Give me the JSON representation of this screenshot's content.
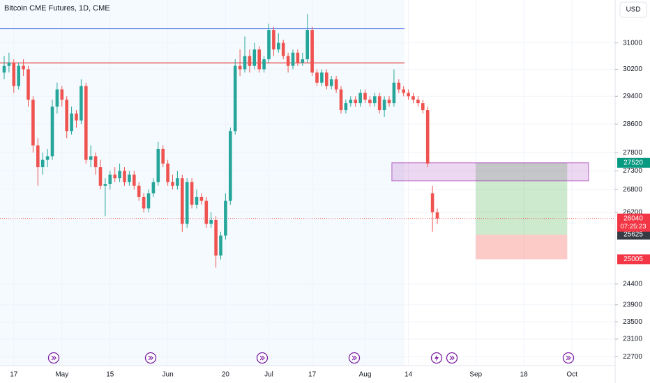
{
  "chart_data": {
    "type": "candlestick",
    "title": "Bitcoin CME Futures, 1D, CME",
    "currency": "USD",
    "log_scale": true,
    "grid": true,
    "up_color": "#26a69a",
    "down_color": "#ef5350",
    "categories": [
      null,
      null,
      "17",
      null,
      null,
      null,
      null,
      null,
      null,
      null,
      null,
      null,
      "May",
      null,
      null,
      null,
      null,
      null,
      null,
      null,
      null,
      null,
      "15",
      null,
      null,
      null,
      null,
      null,
      null,
      null,
      null,
      null,
      null,
      null,
      "Jun",
      null,
      null,
      null,
      null,
      null,
      null,
      null,
      null,
      null,
      null,
      null,
      "20",
      null,
      null,
      null,
      null,
      null,
      null,
      null,
      null,
      "Jul",
      null,
      null,
      null,
      null,
      null,
      null,
      null,
      null,
      "17",
      null,
      null,
      null,
      null,
      null,
      null,
      null,
      null,
      null,
      null,
      "Aug",
      null,
      null,
      null,
      null,
      null,
      null,
      null,
      null,
      "14",
      null,
      null,
      null,
      null,
      null,
      null,
      null,
      null,
      null,
      null,
      null,
      null,
      null,
      "Sep",
      null,
      null,
      null,
      null,
      null,
      null,
      null,
      null,
      null,
      "18",
      null,
      null,
      null,
      null,
      null,
      null,
      null,
      null,
      null,
      "Oct"
    ],
    "ohlc": [
      [
        30100,
        30600,
        29900,
        30300
      ],
      [
        30300,
        30700,
        30100,
        30400
      ],
      [
        30400,
        30500,
        29500,
        29700
      ],
      [
        29700,
        30400,
        29600,
        30300
      ],
      [
        30300,
        30500,
        30000,
        30200
      ],
      [
        30200,
        30300,
        29100,
        29300
      ],
      [
        29300,
        29400,
        27800,
        28000
      ],
      [
        28000,
        28200,
        26900,
        27400
      ],
      [
        27400,
        27800,
        27200,
        27600
      ],
      [
        27600,
        27900,
        27400,
        27700
      ],
      [
        27700,
        29300,
        27600,
        29100
      ],
      [
        29100,
        29800,
        28900,
        29600
      ],
      [
        29600,
        29700,
        29100,
        29300
      ],
      [
        29300,
        29400,
        28200,
        28400
      ],
      [
        28400,
        29100,
        28300,
        28900
      ],
      [
        28900,
        29000,
        28500,
        28700
      ],
      [
        28700,
        29900,
        28600,
        29700
      ],
      [
        29700,
        29800,
        27500,
        27600
      ],
      [
        27600,
        28000,
        27400,
        27700
      ],
      [
        27700,
        27800,
        27200,
        27400
      ],
      [
        27400,
        27600,
        26800,
        26900
      ],
      [
        26900,
        27100,
        26100,
        26950
      ],
      [
        26950,
        27300,
        26800,
        27200
      ],
      [
        27200,
        27400,
        27000,
        27100
      ],
      [
        27100,
        27500,
        27000,
        27300
      ],
      [
        27300,
        27400,
        26900,
        27000
      ],
      [
        27000,
        27300,
        26900,
        27200
      ],
      [
        27200,
        27300,
        26800,
        26900
      ],
      [
        26900,
        27000,
        26500,
        26600
      ],
      [
        26600,
        26700,
        26200,
        26300
      ],
      [
        26300,
        26800,
        26200,
        26700
      ],
      [
        26700,
        27100,
        26600,
        27000
      ],
      [
        27000,
        28100,
        26900,
        27900
      ],
      [
        27900,
        28000,
        27400,
        27500
      ],
      [
        27500,
        27600,
        26900,
        27000
      ],
      [
        27000,
        27200,
        26800,
        26900
      ],
      [
        26900,
        27300,
        26800,
        27100
      ],
      [
        27100,
        27200,
        25700,
        25900
      ],
      [
        25900,
        27100,
        25800,
        27000
      ],
      [
        27000,
        27100,
        26300,
        26400
      ],
      [
        26400,
        26800,
        26300,
        26600
      ],
      [
        26600,
        26700,
        26400,
        26500
      ],
      [
        26500,
        26600,
        25800,
        25900
      ],
      [
        25900,
        26200,
        25800,
        26000
      ],
      [
        26000,
        26100,
        24800,
        25100
      ],
      [
        25100,
        25700,
        25000,
        25600
      ],
      [
        25600,
        26700,
        25500,
        26500
      ],
      [
        26500,
        28500,
        26400,
        28400
      ],
      [
        28400,
        30500,
        28300,
        30300
      ],
      [
        30300,
        30800,
        30000,
        30200
      ],
      [
        30200,
        31200,
        30100,
        30600
      ],
      [
        30600,
        30800,
        30100,
        30300
      ],
      [
        30300,
        31000,
        30200,
        30800
      ],
      [
        30800,
        30900,
        30100,
        30200
      ],
      [
        30200,
        30600,
        30100,
        30500
      ],
      [
        30500,
        31600,
        30400,
        31400
      ],
      [
        31400,
        31500,
        30600,
        30800
      ],
      [
        30800,
        31300,
        30700,
        31000
      ],
      [
        31000,
        31100,
        30500,
        30600
      ],
      [
        30600,
        30700,
        30100,
        30300
      ],
      [
        30300,
        30800,
        30200,
        30700
      ],
      [
        30700,
        30800,
        30300,
        30400
      ],
      [
        30400,
        30700,
        30300,
        30500
      ],
      [
        30500,
        31900,
        30400,
        31400
      ],
      [
        31400,
        31500,
        30000,
        30100
      ],
      [
        30100,
        30200,
        29700,
        29800
      ],
      [
        29800,
        30200,
        29700,
        30100
      ],
      [
        30100,
        30200,
        29600,
        29700
      ],
      [
        29700,
        30000,
        29600,
        29900
      ],
      [
        29900,
        30000,
        29500,
        29600
      ],
      [
        29600,
        29700,
        28900,
        29000
      ],
      [
        29000,
        29300,
        28900,
        29200
      ],
      [
        29200,
        29400,
        29100,
        29300
      ],
      [
        29300,
        29400,
        29100,
        29200
      ],
      [
        29200,
        29600,
        29100,
        29500
      ],
      [
        29500,
        29600,
        29200,
        29300
      ],
      [
        29300,
        29400,
        29100,
        29200
      ],
      [
        29200,
        29500,
        29100,
        29400
      ],
      [
        29400,
        29500,
        28900,
        29000
      ],
      [
        29000,
        29400,
        28800,
        29300
      ],
      [
        29300,
        29400,
        29100,
        29200
      ],
      [
        29200,
        30200,
        29100,
        29800
      ],
      [
        29800,
        29900,
        29500,
        29600
      ],
      [
        29600,
        29700,
        29400,
        29500
      ],
      [
        29500,
        29600,
        29300,
        29400
      ],
      [
        29400,
        29500,
        29200,
        29300
      ],
      [
        29300,
        29400,
        29100,
        29200
      ],
      [
        29200,
        29300,
        28900,
        29000
      ],
      [
        29000,
        29100,
        27400,
        27500
      ],
      [
        26700,
        26900,
        25700,
        26200
      ],
      [
        26200,
        26300,
        25900,
        26040
      ],
      null,
      null,
      null,
      null,
      null,
      null,
      null,
      null,
      null,
      null,
      null,
      null,
      null,
      null,
      null,
      null,
      null,
      null,
      null,
      null,
      null,
      null,
      null,
      null,
      null,
      null,
      null,
      null
    ],
    "ylim": [
      22500,
      32350
    ],
    "yticks": [
      31000,
      30200,
      29400,
      28600,
      27800,
      27300,
      26800,
      26200,
      24400,
      23900,
      23500,
      23100,
      22700
    ],
    "lines": [
      {
        "value": 31450,
        "color": "#2453e6"
      },
      {
        "value": 30390,
        "color": "#e53935"
      }
    ],
    "zone": {
      "ylim": [
        27030,
        27520
      ],
      "color": "#9c27b0"
    },
    "position": {
      "target": 27520,
      "entry": 25625,
      "stop": 25005
    },
    "countdown": "07:25:23"
  }
}
